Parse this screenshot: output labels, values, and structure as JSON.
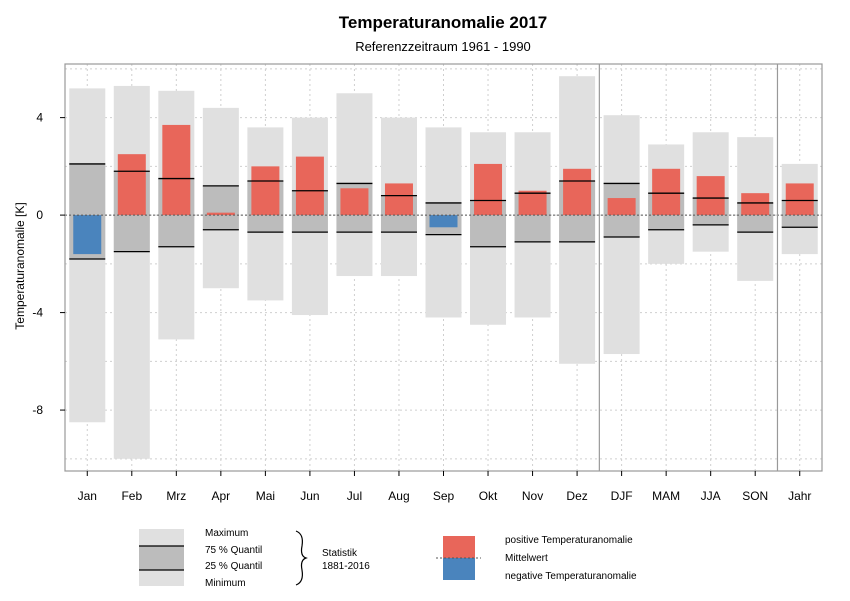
{
  "chart_data": {
    "type": "bar",
    "title": "Temperaturanomalie 2017",
    "subtitle": "Referenzzeitraum 1961 - 1990",
    "ylabel": "Temperaturanomalie [K]",
    "xlabel": "",
    "ylim": [
      -10.5,
      6.2
    ],
    "yticks": [
      -8,
      -4,
      0,
      4
    ],
    "grid": true,
    "categories": [
      "Jan",
      "Feb",
      "Mrz",
      "Apr",
      "Mai",
      "Jun",
      "Jul",
      "Aug",
      "Sep",
      "Okt",
      "Nov",
      "Dez",
      "DJF",
      "MAM",
      "JJA",
      "SON",
      "Jahr"
    ],
    "series": [
      {
        "name": "Maximum",
        "values": [
          5.2,
          5.3,
          5.1,
          4.4,
          3.6,
          4.0,
          5.0,
          4.0,
          3.6,
          3.4,
          3.4,
          5.7,
          4.1,
          2.9,
          3.4,
          3.2,
          2.1
        ]
      },
      {
        "name": "75 % Quantil",
        "values": [
          2.1,
          1.8,
          1.5,
          1.2,
          1.4,
          1.0,
          1.3,
          0.8,
          0.5,
          0.6,
          0.9,
          1.4,
          1.3,
          0.9,
          0.7,
          0.5,
          0.6
        ]
      },
      {
        "name": "25 % Quantil",
        "values": [
          -1.8,
          -1.5,
          -1.3,
          -0.6,
          -0.7,
          -0.7,
          -0.7,
          -0.7,
          -0.8,
          -1.3,
          -1.1,
          -1.1,
          -0.9,
          -0.6,
          -0.4,
          -0.7,
          -0.5
        ]
      },
      {
        "name": "Minimum",
        "values": [
          -8.5,
          -10.0,
          -5.1,
          -3.0,
          -3.5,
          -4.1,
          -2.5,
          -2.5,
          -4.2,
          -4.5,
          -4.2,
          -6.1,
          -5.7,
          -2.0,
          -1.5,
          -2.7,
          -1.6
        ]
      },
      {
        "name": "Temperaturanomalie",
        "values": [
          -1.6,
          2.5,
          3.7,
          0.1,
          2.0,
          2.4,
          1.1,
          1.3,
          -0.5,
          2.1,
          1.0,
          1.9,
          0.7,
          1.9,
          1.6,
          0.9,
          1.3
        ]
      }
    ],
    "separators_after": [
      "Dez",
      "SON"
    ],
    "colors": {
      "positive": "#e8665a",
      "negative": "#4a84bd",
      "range": "#e0e0e0",
      "quantile": "#bcbcbc",
      "frame": "#999999",
      "grid": "#cfcfcf"
    }
  },
  "legend": {
    "max": "Maximum",
    "q75": "75 % Quantil",
    "q25": "25 % Quantil",
    "min": "Minimum",
    "stat_line1": "Statistik",
    "stat_line2": "1881-2016",
    "positive": "positive Temperaturanomalie",
    "mean": "Mittelwert",
    "negative": "negative Temperaturanomalie"
  }
}
